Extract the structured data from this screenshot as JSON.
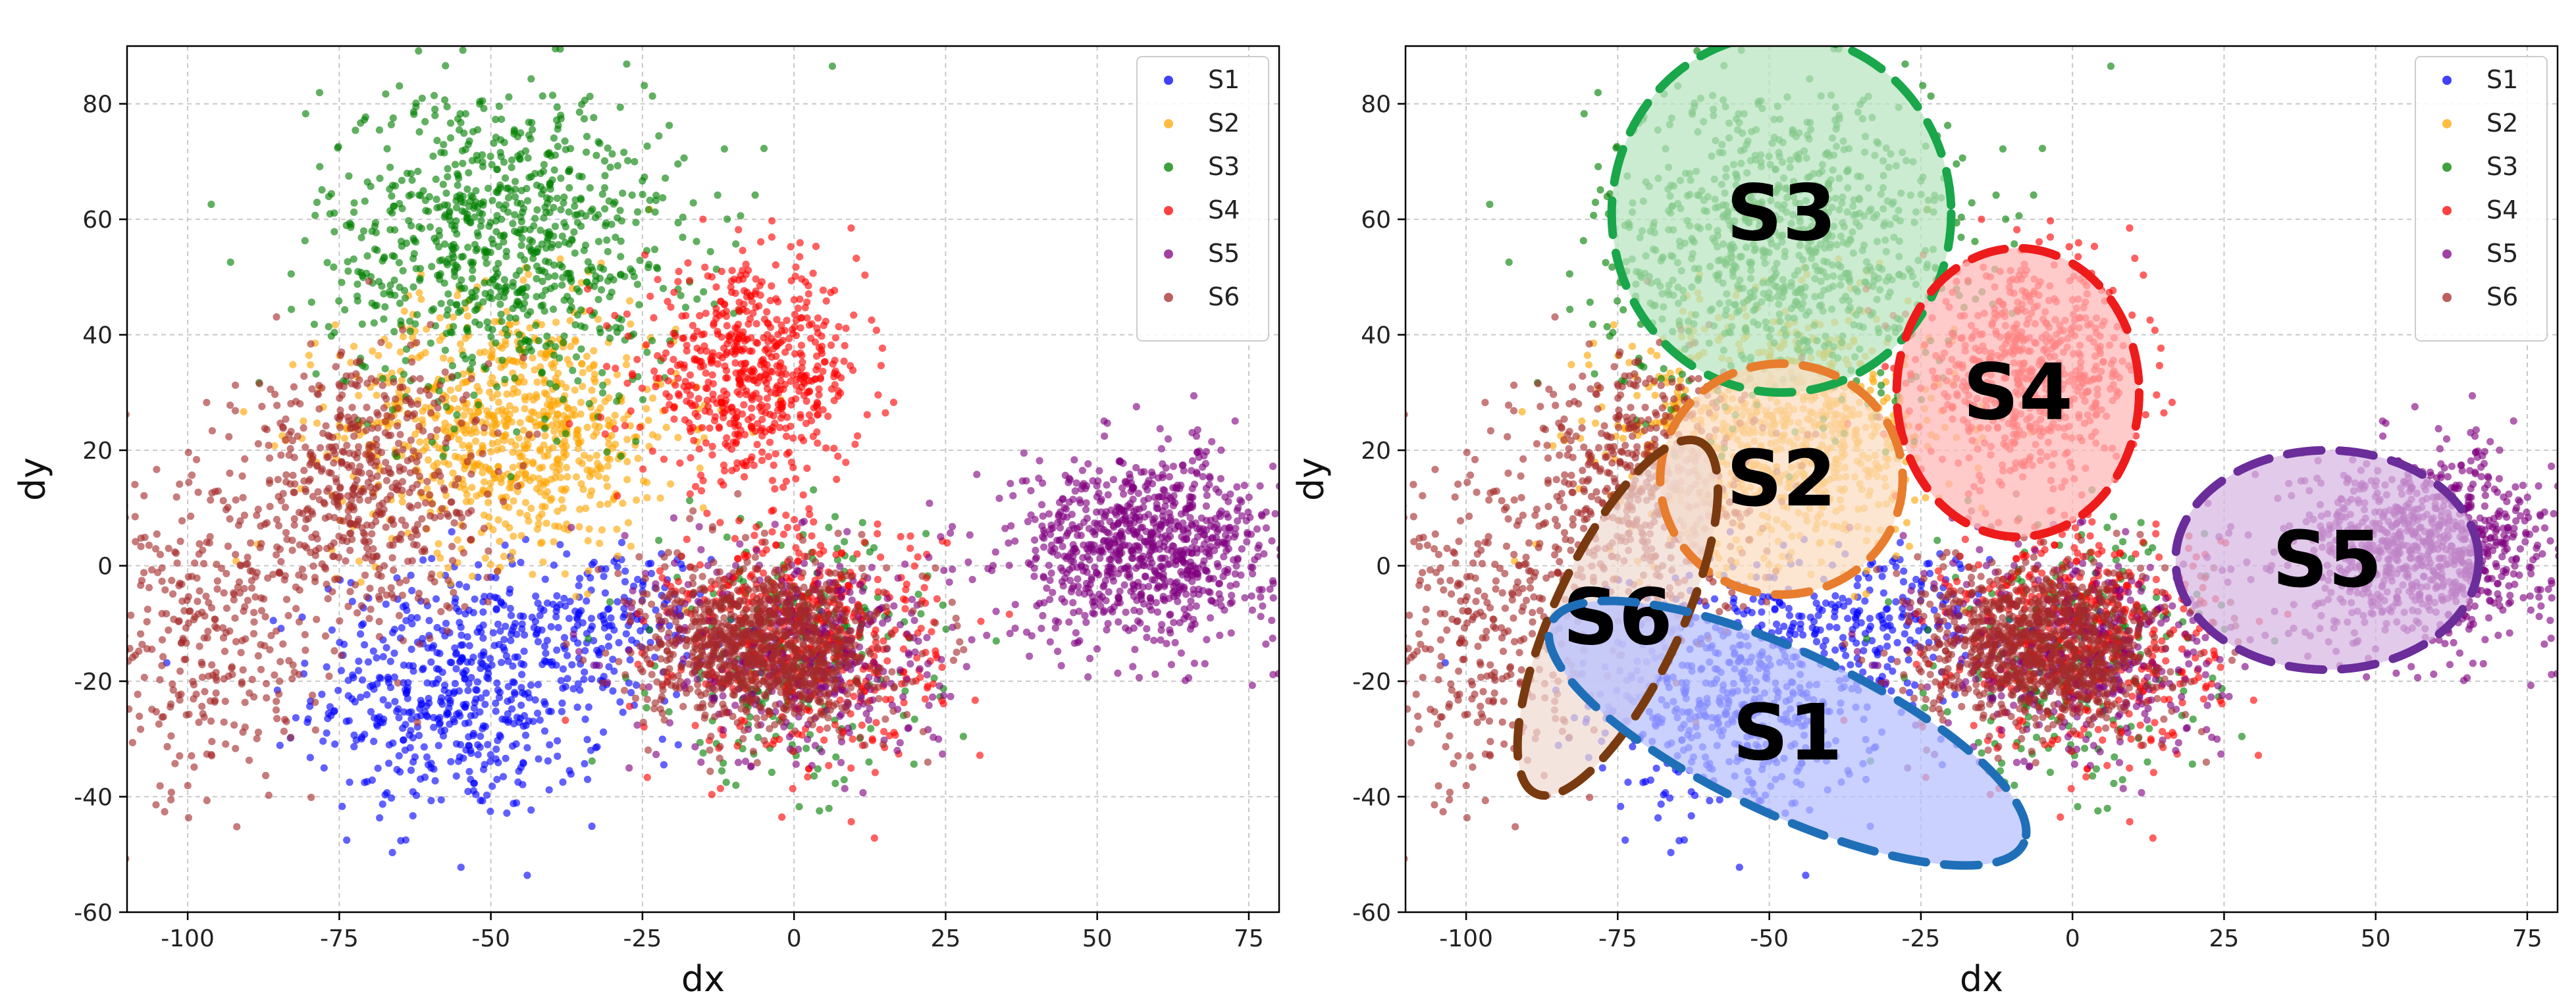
{
  "chart_data": [
    {
      "type": "scatter",
      "panel": "left",
      "xlabel": "dx",
      "ylabel": "dy",
      "xlim": [
        -110,
        80
      ],
      "ylim": [
        -60,
        90
      ],
      "xticks": [
        -100,
        -75,
        -50,
        -25,
        0,
        25,
        50,
        75
      ],
      "yticks": [
        -60,
        -40,
        -20,
        0,
        20,
        40,
        60,
        80
      ],
      "grid": true,
      "legend_position": "top-right",
      "series": [
        {
          "name": "S1",
          "color": "#0000ff",
          "clusters": [
            {
              "cx": -55,
              "cy": -22,
              "sx": 12,
              "sy": 11,
              "count": 560
            },
            {
              "cx": -30,
              "cy": -10,
              "sx": 8,
              "sy": 7,
              "count": 160
            }
          ]
        },
        {
          "name": "S2",
          "color": "#ffa500",
          "clusters": [
            {
              "cx": -47,
              "cy": 24,
              "sx": 14,
              "sy": 11,
              "count": 820
            }
          ]
        },
        {
          "name": "S3",
          "color": "#008000",
          "clusters": [
            {
              "cx": -48,
              "cy": 56,
              "sx": 15,
              "sy": 14,
              "count": 880
            },
            {
              "cx": 0,
              "cy": -15,
              "sx": 11,
              "sy": 11,
              "count": 260
            }
          ]
        },
        {
          "name": "S4",
          "color": "#ff0000",
          "clusters": [
            {
              "cx": -7,
              "cy": 33,
              "sx": 9,
              "sy": 9,
              "count": 620
            },
            {
              "cx": 2,
              "cy": -12,
              "sx": 11,
              "sy": 10,
              "count": 520
            }
          ]
        },
        {
          "name": "S5",
          "color": "#800080",
          "clusters": [
            {
              "cx": 58,
              "cy": 3,
              "sx": 11,
              "sy": 8,
              "count": 900
            },
            {
              "cx": 2,
              "cy": -15,
              "sx": 12,
              "sy": 10,
              "count": 400
            }
          ]
        },
        {
          "name": "S6",
          "color": "#a52a2a",
          "clusters": [
            {
              "cx": -72,
              "cy": 14,
              "sx": 10,
              "sy": 12,
              "count": 560
            },
            {
              "cx": -97,
              "cy": -12,
              "sx": 9,
              "sy": 15,
              "count": 330
            },
            {
              "cx": -5,
              "cy": -14,
              "sx": 10,
              "sy": 7,
              "count": 1000
            }
          ]
        }
      ]
    },
    {
      "type": "scatter",
      "panel": "right",
      "xlabel": "dx",
      "ylabel": "dy",
      "xlim": [
        -110,
        80
      ],
      "ylim": [
        -60,
        90
      ],
      "xticks": [
        -100,
        -75,
        -50,
        -25,
        0,
        25,
        50,
        75
      ],
      "yticks": [
        -60,
        -40,
        -20,
        0,
        20,
        40,
        60,
        80
      ],
      "grid": true,
      "legend_position": "top-right",
      "series_same_as": "left",
      "annotations": [
        {
          "label": "S3",
          "color": "#1aa64a",
          "fill": "#b7e4bf",
          "cx": -48,
          "cy": 61,
          "rx": 28,
          "ry": 31,
          "angle": 0
        },
        {
          "label": "S4",
          "color": "#ee1b1b",
          "fill": "#ffb6b6",
          "cx": -9,
          "cy": 30,
          "rx": 20,
          "ry": 25,
          "angle": 0
        },
        {
          "label": "S2",
          "color": "#e87d2e",
          "fill": "#fbdcbf",
          "cx": -48,
          "cy": 15,
          "rx": 20,
          "ry": 20,
          "angle": 0
        },
        {
          "label": "S5",
          "color": "#6a2d9a",
          "fill": "#d7b5e2",
          "cx": 42,
          "cy": 1,
          "rx": 25,
          "ry": 19,
          "angle": 0
        },
        {
          "label": "S6",
          "color": "#7a3a10",
          "fill": "#f0d9d1",
          "cx": -75,
          "cy": -9,
          "rx": 32,
          "ry": 11,
          "angle": -65
        },
        {
          "label": "S1",
          "color": "#1f6fb8",
          "fill": "#b6bfff",
          "cx": -47,
          "cy": -29,
          "rx": 43,
          "ry": 14,
          "angle": 25
        }
      ]
    }
  ]
}
